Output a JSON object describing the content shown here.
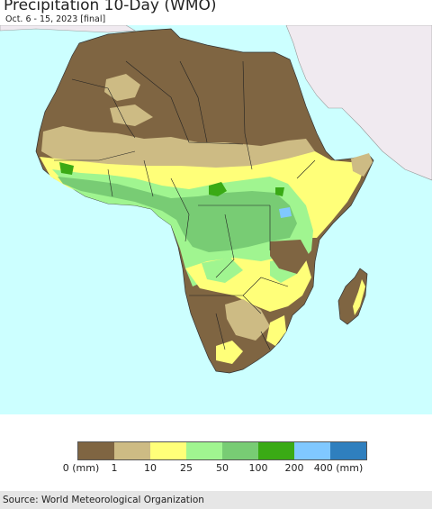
{
  "header": {
    "title": "Precipitation 10-Day (WMO)",
    "subtitle": "Oct. 6 - 15, 2023 [final]"
  },
  "map": {
    "region": "Africa",
    "ocean_color": "#ccffff",
    "outside_land_color": "#f0eaf0"
  },
  "legend": {
    "swatches": [
      {
        "label": "0 (mm)",
        "color": "#7f6542"
      },
      {
        "label": "1",
        "color": "#cdbb84"
      },
      {
        "label": "10",
        "color": "#ffff79"
      },
      {
        "label": "25",
        "color": "#a0f590"
      },
      {
        "label": "50",
        "color": "#78cc74"
      },
      {
        "label": "100",
        "color": "#3aaa15"
      },
      {
        "label": "200",
        "color": "#80c8ff"
      },
      {
        "label": "400 (mm)",
        "color": "#2f7fbe"
      }
    ],
    "tick_labels": [
      "0 (mm)",
      "1",
      "10",
      "25",
      "50",
      "100",
      "200",
      "400 (mm)"
    ]
  },
  "footer": {
    "source": "Source: World Meteorological Organization"
  }
}
